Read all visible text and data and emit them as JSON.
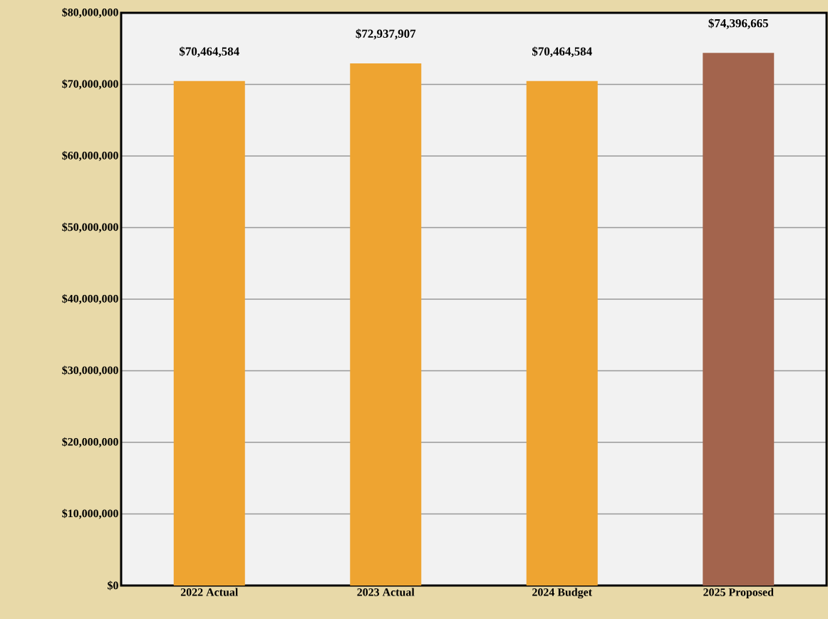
{
  "chart_data": {
    "type": "bar",
    "categories": [
      "2022 Actual",
      "2023 Actual",
      "2024 Budget",
      "2025 Proposed"
    ],
    "values": [
      70464584,
      72937907,
      70464584,
      74396665
    ],
    "colors": [
      "#eea431",
      "#eea431",
      "#eea431",
      "#a3644d"
    ],
    "value_labels": [
      "$70,464,584",
      "$72,937,907",
      "$70,464,584",
      "$74,396,665"
    ],
    "ylim": [
      0,
      80000000
    ],
    "yticks": [
      {
        "value": 0,
        "label": "$0"
      },
      {
        "value": 10000000,
        "label": "$10,000,000"
      },
      {
        "value": 20000000,
        "label": "$20,000,000"
      },
      {
        "value": 30000000,
        "label": "$30,000,000"
      },
      {
        "value": 40000000,
        "label": "$40,000,000"
      },
      {
        "value": 50000000,
        "label": "$50,000,000"
      },
      {
        "value": 60000000,
        "label": "$60,000,000"
      },
      {
        "value": 70000000,
        "label": "$70,000,000"
      },
      {
        "value": 80000000,
        "label": "$80,000,000"
      }
    ],
    "grid": "y"
  }
}
